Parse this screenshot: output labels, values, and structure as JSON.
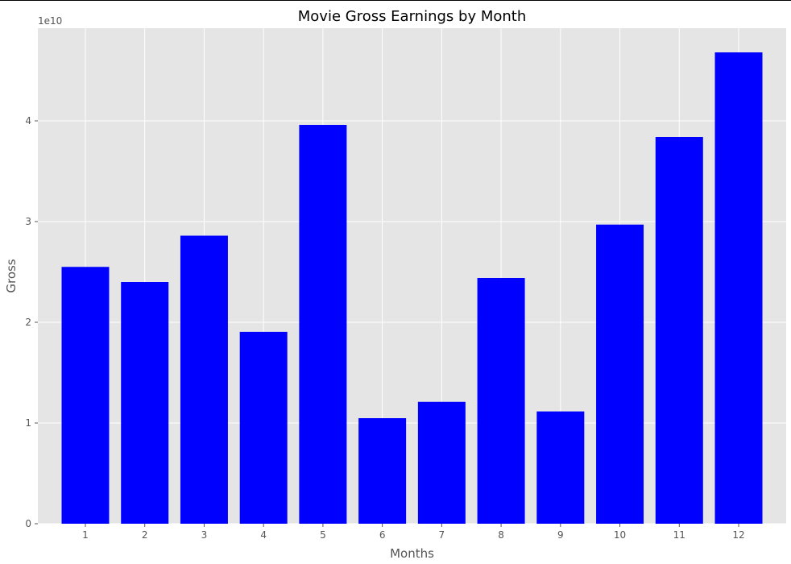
{
  "chart_data": {
    "type": "bar",
    "title": "Movie Gross Earnings by Month",
    "xlabel": "Months",
    "ylabel": "Gross",
    "y_offset_label": "1e10",
    "categories": [
      "1",
      "2",
      "3",
      "4",
      "5",
      "6",
      "7",
      "8",
      "9",
      "10",
      "11",
      "12"
    ],
    "values": [
      25500000000,
      24000000000,
      28600000000,
      19050000000,
      39600000000,
      10480000000,
      12100000000,
      24400000000,
      11150000000,
      29700000000,
      38400000000,
      46800000000
    ],
    "ylim": [
      0,
      49200000000
    ],
    "yticks": [
      0,
      10000000000,
      20000000000,
      30000000000,
      40000000000
    ],
    "ytick_labels": [
      "0",
      "1",
      "2",
      "3",
      "4"
    ],
    "bar_color": "#0000ff",
    "background_color": "#e5e5e5",
    "grid": true
  }
}
